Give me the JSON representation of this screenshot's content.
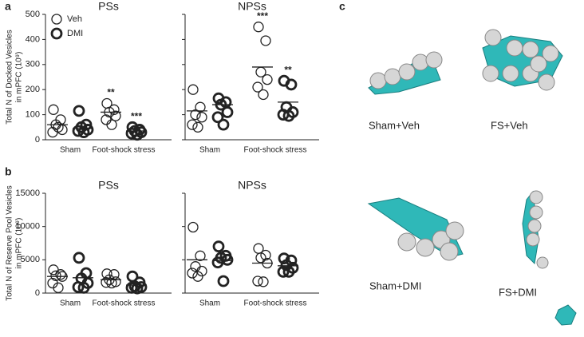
{
  "panel_labels": [
    "a",
    "b",
    "c"
  ],
  "images": [
    "Sham+Veh",
    "FS+Veh",
    "Sham+DMI",
    "FS+DMI"
  ],
  "chart_data": [
    {
      "type": "dot",
      "title": "PSs",
      "ylabel": [
        "Total N of Docked Vesicles",
        "in mPFC (10⁹)"
      ],
      "categories": [
        "Sham",
        "Foot-shock stress"
      ],
      "ylim": [
        0,
        500
      ],
      "yticks": [
        0,
        100,
        200,
        300,
        400,
        500
      ],
      "legend": "upper left",
      "series": [
        {
          "name": "Veh",
          "color": "#222222",
          "stroke_width": 1.3,
          "values": [
            [
              120,
              80,
              60,
              40,
              30,
              50
            ],
            [
              145,
              120,
              110,
              95,
              80,
              60
            ]
          ],
          "means": [
            60,
            110
          ]
        },
        {
          "name": "DMI",
          "color": "#222222",
          "stroke_width": 2.8,
          "values": [
            [
              115,
              60,
              50,
              40,
              35,
              30
            ],
            [
              50,
              40,
              35,
              30,
              25,
              20
            ]
          ],
          "means": [
            45,
            35
          ]
        }
      ],
      "annotations": [
        {
          "text": "**",
          "category": 1,
          "series": 0
        },
        {
          "text": "***",
          "category": 1,
          "series": 1
        }
      ]
    },
    {
      "type": "dot",
      "title": "NPSs",
      "categories": [
        "Sham",
        "Foot-shock stress"
      ],
      "ylim": [
        0,
        500
      ],
      "yticks": [
        0,
        100,
        200,
        300,
        400,
        500
      ],
      "series": [
        {
          "color": "#222222",
          "stroke_width": 1.3,
          "values": [
            [
              200,
              130,
              100,
              90,
              60,
              50
            ],
            [
              450,
              395,
              270,
              240,
              210,
              180
            ]
          ],
          "means": [
            115,
            290
          ]
        },
        {
          "color": "#222222",
          "stroke_width": 2.8,
          "values": [
            [
              165,
              150,
              140,
              110,
              90,
              60
            ],
            [
              235,
              220,
              130,
              110,
              100,
              95
            ]
          ],
          "means": [
            140,
            150
          ]
        }
      ],
      "annotations": [
        {
          "text": "***",
          "category": 1,
          "series": 0
        },
        {
          "text": "**",
          "category": 1,
          "series": 1
        }
      ]
    },
    {
      "type": "dot",
      "title": "PSs",
      "ylabel": [
        "Total N of Reserve Pool Vesicles",
        "in mPFC (10⁹)"
      ],
      "categories": [
        "Sham",
        "Foot-shock stress"
      ],
      "ylim": [
        0,
        15000
      ],
      "yticks": [
        0,
        5000,
        10000,
        15000
      ],
      "series": [
        {
          "color": "#222222",
          "stroke_width": 1.3,
          "values": [
            [
              3500,
              2800,
              2600,
              2500,
              1500,
              800
            ],
            [
              2900,
              2800,
              2000,
              1700,
              1600,
              1500
            ]
          ],
          "means": [
            2500,
            2000
          ]
        },
        {
          "color": "#222222",
          "stroke_width": 2.8,
          "values": [
            [
              5300,
              3000,
              2200,
              1500,
              900,
              800
            ],
            [
              2500,
              1600,
              1000,
              900,
              800,
              700
            ]
          ],
          "means": [
            2300,
            1200
          ]
        }
      ]
    },
    {
      "type": "dot",
      "title": "NPSs",
      "categories": [
        "Sham",
        "Foot-shock stress"
      ],
      "ylim": [
        0,
        15000
      ],
      "yticks": [
        0,
        5000,
        10000,
        15000
      ],
      "series": [
        {
          "color": "#222222",
          "stroke_width": 1.3,
          "values": [
            [
              9900,
              5600,
              4000,
              3300,
              3000,
              2500
            ],
            [
              6700,
              5700,
              5300,
              4500,
              1800,
              1700
            ]
          ],
          "means": [
            5000,
            4500
          ]
        },
        {
          "color": "#222222",
          "stroke_width": 2.8,
          "values": [
            [
              7000,
              5600,
              5300,
              5000,
              4600,
              1800
            ],
            [
              5200,
              4900,
              4200,
              3800,
              3200,
              3200
            ]
          ],
          "means": [
            4900,
            4100
          ]
        }
      ]
    }
  ]
}
